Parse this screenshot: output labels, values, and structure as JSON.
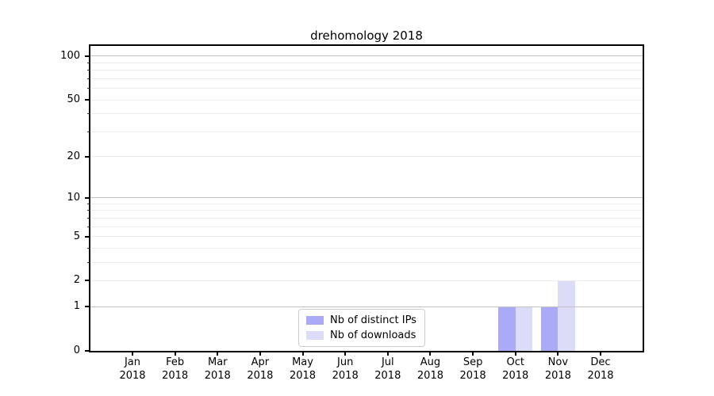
{
  "page": {
    "background": "#ffffff"
  },
  "chart_data": {
    "type": "bar",
    "title": "drehomology 2018",
    "x": {
      "months": [
        "Jan",
        "Feb",
        "Mar",
        "Apr",
        "May",
        "Jun",
        "Jul",
        "Aug",
        "Sep",
        "Oct",
        "Nov",
        "Dec"
      ],
      "year": "2018"
    },
    "y": {
      "scale": "log10(1+v)",
      "ticks": [
        0,
        1,
        2,
        5,
        10,
        20,
        50,
        100
      ],
      "major_gridlines": [
        1,
        10,
        100
      ],
      "minor_gridlines": [
        2,
        3,
        4,
        5,
        6,
        7,
        8,
        9,
        20,
        30,
        40,
        50,
        60,
        70,
        80,
        90
      ],
      "top_value": 117.6
    },
    "series": [
      {
        "name": "Nb of distinct IPs",
        "color": "#aaaaf7",
        "values": [
          0,
          0,
          0,
          0,
          0,
          0,
          0,
          0,
          0,
          1,
          1,
          0
        ]
      },
      {
        "name": "Nb of downloads",
        "color": "#dcdcf8",
        "values": [
          0,
          0,
          0,
          0,
          0,
          0,
          0,
          0,
          0,
          1,
          2,
          0
        ]
      }
    ],
    "legend": {
      "position": "lower-center"
    }
  },
  "colors": {
    "axis": "#000000",
    "major_grid": "#c0c0c0",
    "minor_grid": "#ececec",
    "legend_border": "#cccccc"
  }
}
